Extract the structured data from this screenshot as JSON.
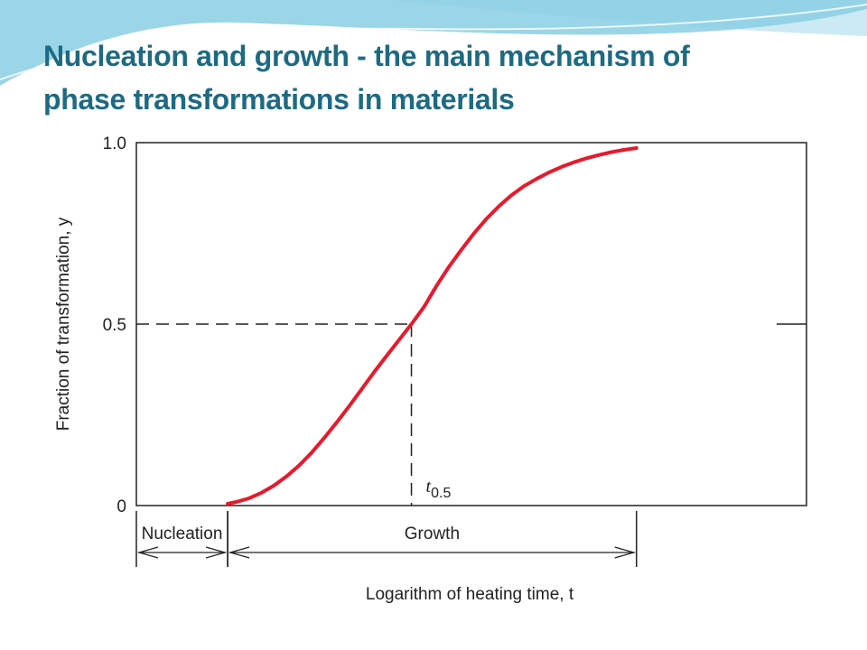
{
  "slide": {
    "title_line1": "Nucleation and growth - the main mechanism of",
    "title_line2": "phase transformations in materials",
    "title_color": "#1d6a82",
    "banner_color": "#8fd0e6"
  },
  "chart_data": {
    "type": "line",
    "title": "",
    "ylabel": "Fraction of transformation, y",
    "xlabel": "Logarithm of heating time, t",
    "x_scale": "log",
    "ylim": [
      0,
      1.0
    ],
    "yticks": [
      {
        "value": 0,
        "label": "0"
      },
      {
        "value": 0.5,
        "label": "0.5"
      },
      {
        "value": 1.0,
        "label": "1.0"
      }
    ],
    "series": [
      {
        "color": "#e8192c",
        "x": [
          0.365,
          0.4,
          0.45,
          0.5,
          0.55,
          0.6,
          0.65,
          0.7,
          0.75,
          0.8,
          0.85,
          0.9,
          0.95,
          1.0,
          1.05,
          1.1,
          1.15,
          1.2,
          1.25,
          1.3,
          1.35,
          1.4,
          1.45,
          1.5,
          1.55,
          1.6,
          1.65,
          1.7,
          1.75,
          1.8,
          1.85,
          1.9,
          1.95,
          2.0
        ],
        "y": [
          0.005,
          0.01,
          0.02,
          0.035,
          0.055,
          0.08,
          0.11,
          0.145,
          0.185,
          0.228,
          0.273,
          0.32,
          0.367,
          0.412,
          0.456,
          0.5,
          0.547,
          0.605,
          0.658,
          0.705,
          0.75,
          0.79,
          0.825,
          0.855,
          0.88,
          0.9,
          0.918,
          0.933,
          0.946,
          0.957,
          0.966,
          0.974,
          0.98,
          0.985
        ]
      }
    ],
    "reference": {
      "label": "t",
      "subscript": "0.5",
      "x": 1.1,
      "y": 0.5
    },
    "regions": [
      {
        "label": "Nucleation",
        "x_start": 0.0,
        "x_end": 0.365
      },
      {
        "label": "Growth",
        "x_start": 0.365,
        "x_end": 2.0
      }
    ],
    "xlim": [
      0.0,
      2.68
    ],
    "grid": false,
    "legend": "none"
  }
}
